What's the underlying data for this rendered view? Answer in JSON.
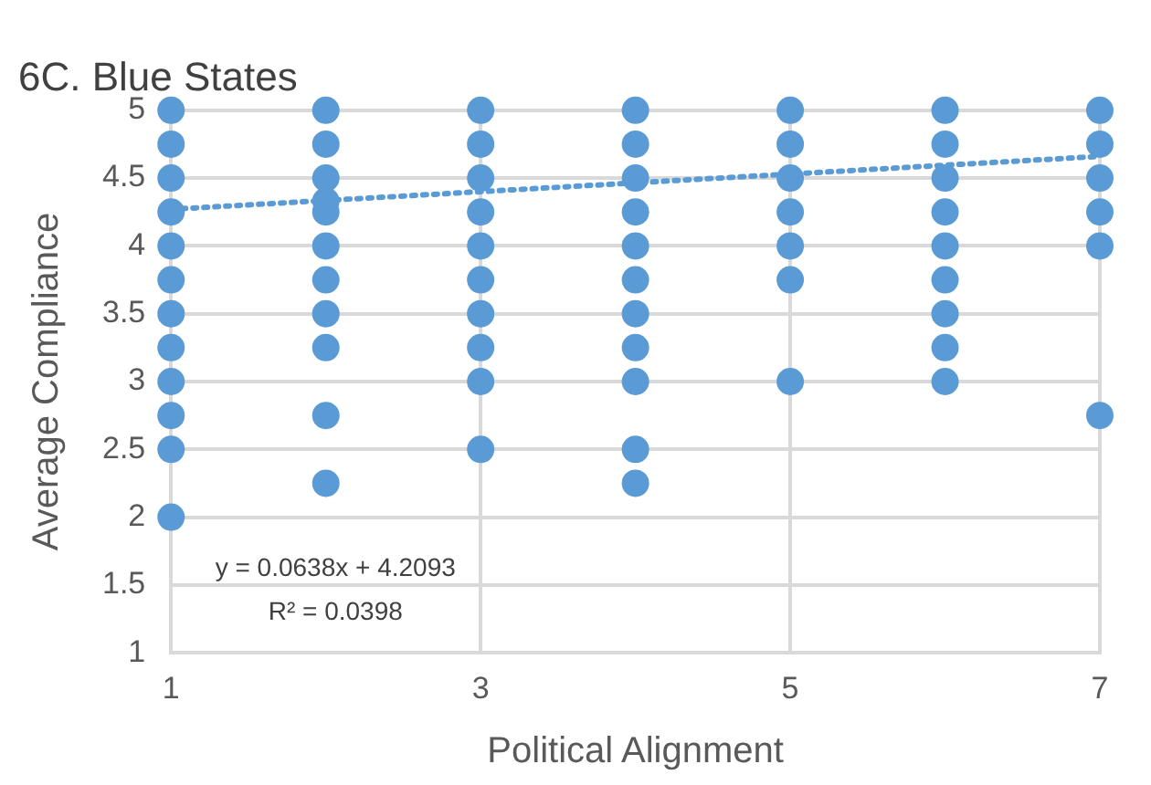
{
  "chart_data": {
    "type": "scatter",
    "title": "6C. Blue States",
    "xlabel": "Political Alignment",
    "ylabel": "Average Compliance",
    "xlim": [
      1,
      7
    ],
    "xticks": [
      1,
      3,
      5,
      7
    ],
    "ylim": [
      1,
      5
    ],
    "yticks": [
      1,
      1.5,
      2,
      2.5,
      3,
      3.5,
      4,
      4.5,
      5
    ],
    "grid": true,
    "legend": false,
    "marker": "circle",
    "series": [
      {
        "type": "scatter",
        "color": "#5b9bd5",
        "x": [
          1,
          1,
          1,
          1,
          1,
          1,
          1,
          1,
          1,
          1,
          1,
          1,
          2,
          2,
          2,
          2,
          2,
          2,
          2,
          2,
          2,
          2,
          2,
          3,
          3,
          3,
          3,
          3,
          3,
          3,
          3,
          3,
          3,
          4,
          4,
          4,
          4,
          4,
          4,
          4,
          4,
          4,
          4,
          4,
          5,
          5,
          5,
          5,
          5,
          5,
          5,
          6,
          6,
          6,
          6,
          6,
          6,
          6,
          6,
          6,
          7,
          7,
          7,
          7,
          7,
          7
        ],
        "values": [
          5,
          4.75,
          4.5,
          4.25,
          4,
          3.75,
          3.5,
          3.25,
          3,
          2.75,
          2.5,
          2,
          5,
          4.75,
          4.5,
          4.33,
          4.25,
          4,
          3.75,
          3.5,
          3.25,
          2.75,
          2.25,
          5,
          4.75,
          4.5,
          4.25,
          4,
          3.75,
          3.5,
          3.25,
          3,
          2.5,
          5,
          4.75,
          4.5,
          4.25,
          4,
          3.75,
          3.5,
          3.25,
          3,
          2.5,
          2.25,
          5,
          4.75,
          4.5,
          4.25,
          4,
          3.75,
          3,
          5,
          4.75,
          4.5,
          4.25,
          4,
          3.75,
          3.5,
          3.25,
          3,
          5,
          4.75,
          4.5,
          4.25,
          4,
          2.75
        ]
      },
      {
        "type": "line",
        "color": "#5b9bd5",
        "line_style": "dotted",
        "marker": "none",
        "x": [
          1,
          7
        ],
        "values": [
          4.27,
          4.66
        ]
      }
    ],
    "annotations": [
      "y = 0.0638x + 4.2093",
      "R² = 0.0398"
    ]
  }
}
